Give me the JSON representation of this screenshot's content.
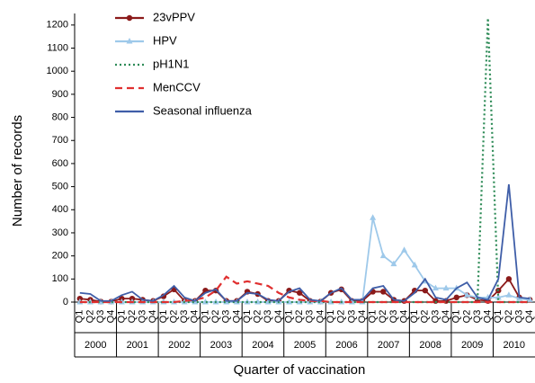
{
  "chart_data": {
    "type": "line",
    "y_label": "Number of records",
    "x_label": "Quarter of vaccination",
    "categories": [
      "Q1",
      "Q2",
      "Q3",
      "Q4",
      "Q1",
      "Q2",
      "Q3",
      "Q4",
      "Q1",
      "Q2",
      "Q3",
      "Q4",
      "Q1",
      "Q2",
      "Q3",
      "Q4",
      "Q1",
      "Q2",
      "Q3",
      "Q4",
      "Q1",
      "Q2",
      "Q3",
      "Q4",
      "Q1",
      "Q2",
      "Q3",
      "Q4",
      "Q1",
      "Q2",
      "Q3",
      "Q4",
      "Q1",
      "Q2",
      "Q3",
      "Q4",
      "Q1",
      "Q2",
      "Q3",
      "Q4",
      "Q1",
      "Q2",
      "Q3",
      "Q4"
    ],
    "groups": [
      "2000",
      "2001",
      "2002",
      "2003",
      "2004",
      "2005",
      "2006",
      "2007",
      "2008",
      "2009",
      "2010"
    ],
    "ylim": [
      0,
      1250
    ],
    "yticks": [
      0,
      100,
      200,
      300,
      400,
      500,
      600,
      700,
      800,
      900,
      1000,
      1100,
      1200
    ],
    "series": [
      {
        "name": "23vPPV",
        "color": "#8b1a1a",
        "marker": "circle",
        "dash": "none",
        "values": [
          15,
          10,
          2,
          2,
          15,
          15,
          10,
          5,
          25,
          55,
          5,
          5,
          50,
          50,
          5,
          5,
          45,
          35,
          5,
          5,
          50,
          40,
          5,
          2,
          40,
          55,
          5,
          5,
          45,
          45,
          10,
          5,
          50,
          50,
          5,
          5,
          20,
          30,
          10,
          5,
          50,
          100,
          20,
          10
        ]
      },
      {
        "name": "HPV",
        "color": "#9ec9ea",
        "marker": "triangle",
        "dash": "none",
        "values": [
          0,
          0,
          0,
          0,
          0,
          0,
          0,
          0,
          0,
          0,
          0,
          0,
          0,
          0,
          0,
          0,
          0,
          0,
          0,
          0,
          0,
          0,
          0,
          0,
          0,
          0,
          0,
          0,
          365,
          200,
          165,
          225,
          160,
          90,
          60,
          60,
          60,
          30,
          20,
          20,
          20,
          30,
          15,
          10
        ]
      },
      {
        "name": "pH1N1",
        "color": "#2e8b57",
        "marker": "none",
        "dash": "2,3",
        "values": [
          0,
          0,
          0,
          0,
          0,
          0,
          0,
          0,
          0,
          0,
          0,
          0,
          0,
          0,
          0,
          0,
          0,
          0,
          0,
          0,
          0,
          0,
          0,
          0,
          0,
          0,
          0,
          0,
          0,
          0,
          0,
          0,
          0,
          0,
          0,
          0,
          0,
          0,
          0,
          1230,
          0,
          0,
          0,
          0
        ]
      },
      {
        "name": "MenCCV",
        "color": "#e03030",
        "marker": "none",
        "dash": "8,5",
        "values": [
          0,
          0,
          0,
          0,
          0,
          0,
          0,
          0,
          0,
          0,
          5,
          10,
          20,
          50,
          110,
          80,
          90,
          80,
          70,
          40,
          20,
          10,
          5,
          5,
          0,
          0,
          0,
          0,
          0,
          0,
          0,
          0,
          0,
          0,
          0,
          0,
          0,
          0,
          0,
          0,
          0,
          0,
          0,
          0
        ]
      },
      {
        "name": "Seasonal influenza",
        "color": "#3f5ea8",
        "marker": "none",
        "dash": "none",
        "values": [
          40,
          35,
          5,
          5,
          30,
          45,
          10,
          5,
          30,
          70,
          20,
          5,
          40,
          55,
          5,
          5,
          40,
          35,
          10,
          5,
          45,
          60,
          10,
          5,
          40,
          60,
          10,
          10,
          60,
          70,
          10,
          5,
          40,
          100,
          20,
          10,
          60,
          85,
          20,
          10,
          100,
          510,
          20,
          15
        ]
      }
    ]
  }
}
